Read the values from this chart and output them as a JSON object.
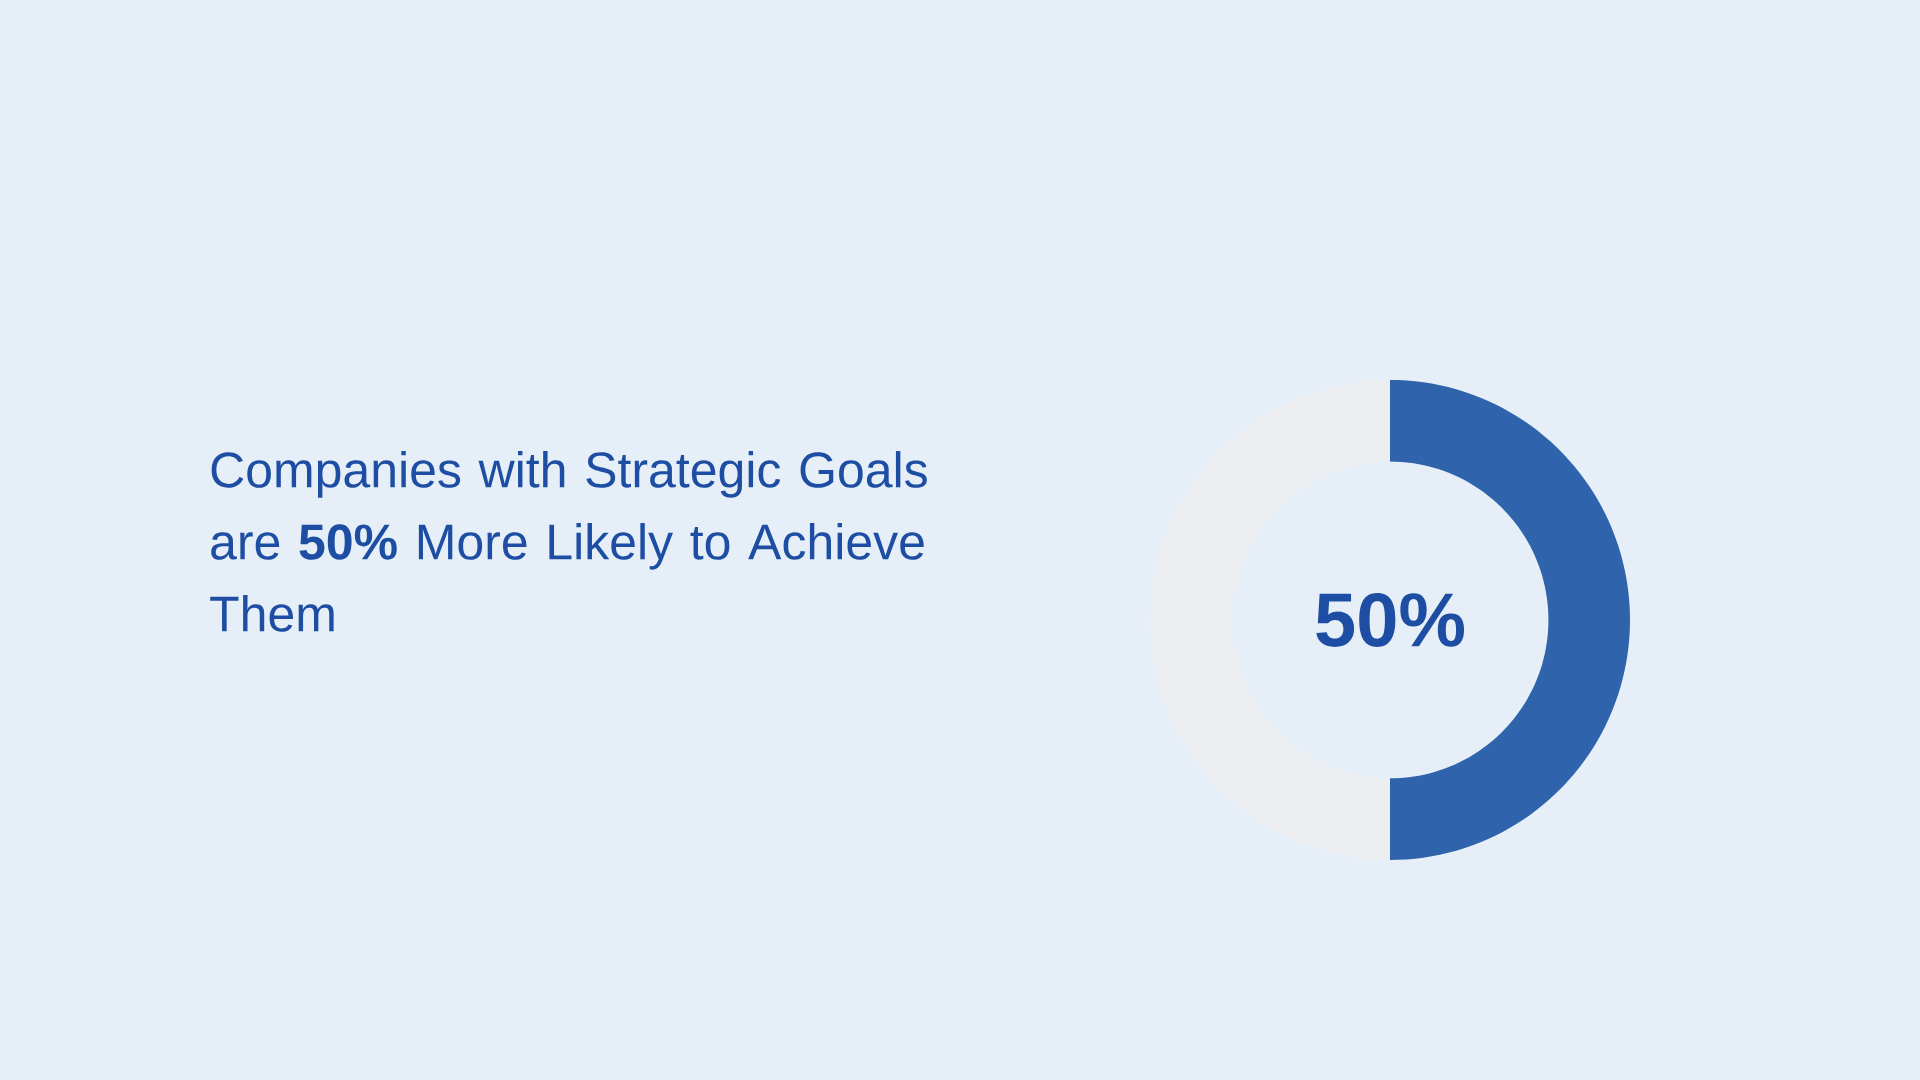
{
  "chart_data": {
    "type": "donut",
    "title": "Companies with Strategic Goals are **50%** More Likely to Achieve Them",
    "categories": [
      null,
      null
    ],
    "values": [
      50,
      50
    ],
    "colors": [
      "#2f64ad",
      "#eceef1"
    ],
    "value_labels": [
      "50%",
      null
    ]
  }
}
